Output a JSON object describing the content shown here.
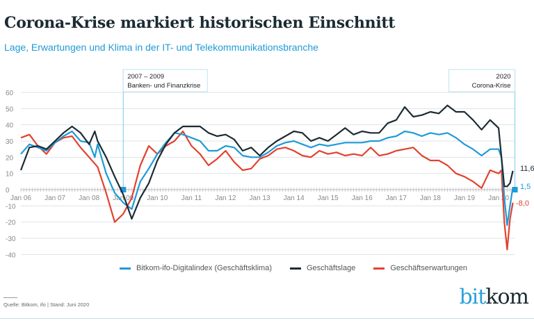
{
  "header": {
    "title": "Corona-Krise markiert historischen Einschnitt",
    "subtitle": "Lage, Erwartungen und Klima in der IT- und Telekommunikationsbranche"
  },
  "annotations": [
    {
      "line1": "2007 – 2009",
      "line2": "Banken- und Finanzkrise",
      "at": "2009-01"
    },
    {
      "line1": "2020",
      "line2": "Corona-Krise",
      "at": "2020-06"
    }
  ],
  "chart_data": {
    "type": "line",
    "title": "",
    "xlabel": "",
    "ylabel": "",
    "ylim": [
      -40,
      60
    ],
    "yticks": [
      60,
      50,
      40,
      30,
      20,
      10,
      0,
      -10,
      -20,
      -30,
      -40
    ],
    "xticks": [
      "Jan 06",
      "Jan 07",
      "Jan 08",
      "Jan 09",
      "Jan 10",
      "Jan 11",
      "Jan 12",
      "Jan 13",
      "Jan 14",
      "Jan 15",
      "Jan 16",
      "Jan 17",
      "Jan 18",
      "Jan 19",
      "Jan 20"
    ],
    "xrange": [
      "2006-01",
      "2020-06"
    ],
    "grid": true,
    "legend_placement": "bottom",
    "series": [
      {
        "name": "Bitkom-ifo-Digitalindex (Geschäftsklima)",
        "color": "#1e9bd7",
        "end_label": "1,5",
        "x": [
          "2006-01",
          "2006-04",
          "2006-07",
          "2006-10",
          "2007-01",
          "2007-04",
          "2007-07",
          "2007-10",
          "2008-01",
          "2008-03",
          "2008-04",
          "2008-07",
          "2008-10",
          "2009-01",
          "2009-04",
          "2009-07",
          "2009-10",
          "2010-01",
          "2010-04",
          "2010-07",
          "2010-10",
          "2011-01",
          "2011-04",
          "2011-07",
          "2011-10",
          "2012-01",
          "2012-04",
          "2012-07",
          "2012-10",
          "2013-01",
          "2013-04",
          "2013-07",
          "2013-10",
          "2014-01",
          "2014-04",
          "2014-07",
          "2014-10",
          "2015-01",
          "2015-04",
          "2015-07",
          "2015-10",
          "2016-01",
          "2016-04",
          "2016-07",
          "2016-10",
          "2017-01",
          "2017-04",
          "2017-07",
          "2017-10",
          "2018-01",
          "2018-04",
          "2018-07",
          "2018-10",
          "2019-01",
          "2019-04",
          "2019-07",
          "2019-10",
          "2020-01",
          "2020-02",
          "2020-03",
          "2020-04",
          "2020-05",
          "2020-06"
        ],
        "values": [
          22,
          28,
          26,
          24,
          29,
          33,
          36,
          30,
          29,
          20,
          28,
          10,
          -2,
          -8,
          -12,
          5,
          13,
          22,
          29,
          35,
          34,
          32,
          30,
          24,
          24,
          27,
          26,
          21,
          20,
          20,
          23,
          27,
          29,
          30,
          28,
          26,
          28,
          27,
          28,
          29,
          29,
          29,
          30,
          30,
          32,
          33,
          36,
          35,
          33,
          35,
          34,
          35,
          32,
          28,
          25,
          21,
          25,
          25,
          20,
          -5,
          -22,
          -10,
          1.5
        ]
      },
      {
        "name": "Geschäftslage",
        "color": "#1b2b33",
        "end_label": "11,6",
        "x": [
          "2006-01",
          "2006-04",
          "2006-07",
          "2006-10",
          "2007-01",
          "2007-04",
          "2007-07",
          "2007-10",
          "2008-01",
          "2008-03",
          "2008-04",
          "2008-07",
          "2008-10",
          "2009-01",
          "2009-04",
          "2009-07",
          "2009-10",
          "2010-01",
          "2010-04",
          "2010-07",
          "2010-10",
          "2011-01",
          "2011-04",
          "2011-07",
          "2011-10",
          "2012-01",
          "2012-04",
          "2012-07",
          "2012-10",
          "2013-01",
          "2013-04",
          "2013-07",
          "2013-10",
          "2014-01",
          "2014-04",
          "2014-07",
          "2014-10",
          "2015-01",
          "2015-04",
          "2015-07",
          "2015-10",
          "2016-01",
          "2016-04",
          "2016-07",
          "2016-10",
          "2017-01",
          "2017-04",
          "2017-07",
          "2017-10",
          "2018-01",
          "2018-04",
          "2018-07",
          "2018-10",
          "2019-01",
          "2019-04",
          "2019-07",
          "2019-10",
          "2020-01",
          "2020-02",
          "2020-03",
          "2020-04",
          "2020-05",
          "2020-06"
        ],
        "values": [
          12,
          26,
          27,
          25,
          30,
          35,
          39,
          35,
          28,
          36,
          30,
          20,
          8,
          -3,
          -18,
          -5,
          4,
          18,
          28,
          35,
          39,
          39,
          39,
          35,
          33,
          34,
          31,
          24,
          26,
          21,
          26,
          30,
          33,
          36,
          35,
          30,
          32,
          30,
          34,
          38,
          34,
          36,
          35,
          35,
          41,
          43,
          51,
          45,
          46,
          48,
          47,
          52,
          48,
          48,
          43,
          37,
          43,
          38,
          20,
          2,
          2,
          4,
          11.6
        ]
      },
      {
        "name": "Geschäftserwartungen",
        "color": "#e2412f",
        "end_label": "-8,0",
        "x": [
          "2006-01",
          "2006-04",
          "2006-07",
          "2006-10",
          "2007-01",
          "2007-04",
          "2007-07",
          "2007-10",
          "2008-01",
          "2008-04",
          "2008-07",
          "2008-10",
          "2009-01",
          "2009-04",
          "2009-07",
          "2009-10",
          "2010-01",
          "2010-04",
          "2010-07",
          "2010-10",
          "2011-01",
          "2011-04",
          "2011-07",
          "2011-10",
          "2012-01",
          "2012-04",
          "2012-07",
          "2012-10",
          "2013-01",
          "2013-04",
          "2013-07",
          "2013-10",
          "2014-01",
          "2014-04",
          "2014-07",
          "2014-10",
          "2015-01",
          "2015-04",
          "2015-07",
          "2015-10",
          "2016-01",
          "2016-04",
          "2016-07",
          "2016-10",
          "2017-01",
          "2017-04",
          "2017-07",
          "2017-10",
          "2018-01",
          "2018-04",
          "2018-07",
          "2018-10",
          "2019-01",
          "2019-04",
          "2019-07",
          "2019-10",
          "2020-01",
          "2020-02",
          "2020-03",
          "2020-04",
          "2020-05",
          "2020-06"
        ],
        "values": [
          32,
          34,
          27,
          22,
          29,
          32,
          33,
          26,
          20,
          14,
          -2,
          -20,
          -15,
          -5,
          15,
          27,
          22,
          27,
          30,
          36,
          27,
          22,
          15,
          19,
          24,
          17,
          12,
          13,
          19,
          21,
          25,
          26,
          24,
          21,
          20,
          24,
          22,
          23,
          21,
          22,
          21,
          26,
          21,
          22,
          24,
          25,
          26,
          21,
          18,
          18,
          15,
          10,
          8,
          5,
          1,
          12,
          10,
          12,
          -20,
          -37,
          -18,
          -8.0
        ]
      }
    ]
  },
  "footer": {
    "source": "Quelle: Bitkom, ifo | Stand: Juni 2020",
    "logo_text": "bitkom",
    "logo_part1": "bit",
    "logo_part2": "kom"
  }
}
